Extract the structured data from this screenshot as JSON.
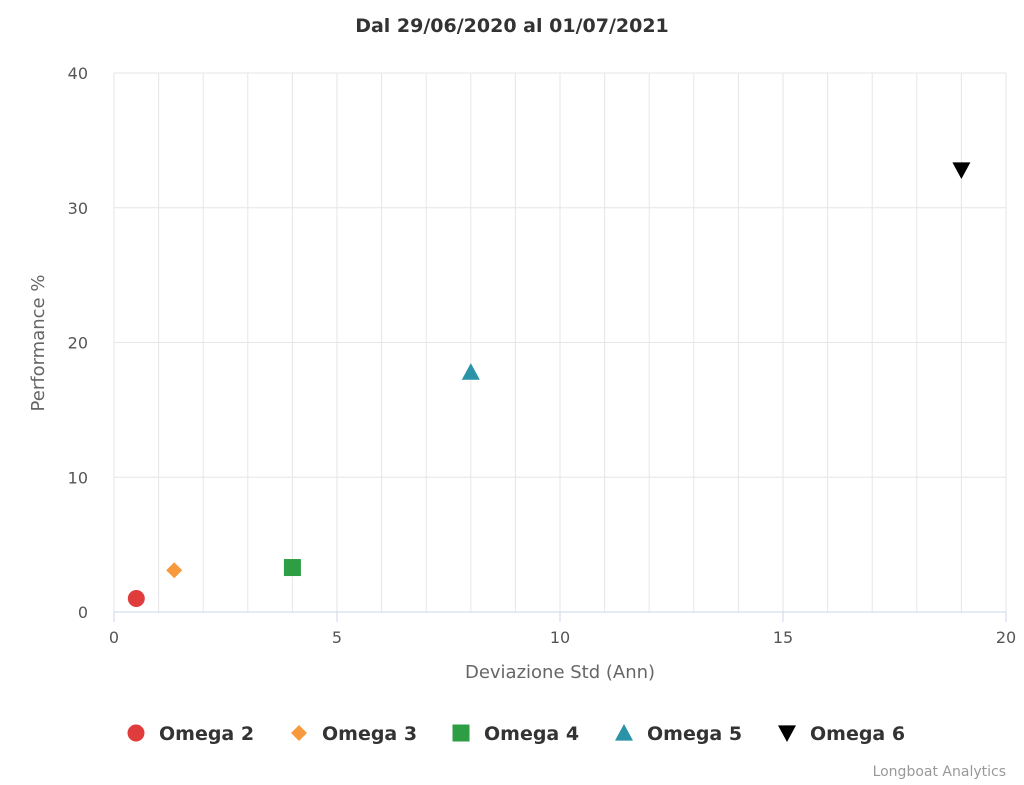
{
  "chart_data": {
    "type": "scatter",
    "title": "Dal 29/06/2020 al 01/07/2021",
    "xlabel": "Deviazione Std (Ann)",
    "ylabel": "Performance %",
    "xlim": [
      0,
      20
    ],
    "ylim": [
      0,
      40
    ],
    "x_ticks": [
      0,
      5,
      10,
      15,
      20
    ],
    "y_ticks": [
      0,
      10,
      20,
      30,
      40
    ],
    "grid": true,
    "legend_position": "bottom-center",
    "series": [
      {
        "name": "Omega 2",
        "marker": "circle",
        "color": "#e03c3c",
        "points": [
          {
            "x": 0.5,
            "y": 1.0
          }
        ]
      },
      {
        "name": "Omega 3",
        "marker": "diamond",
        "color": "#f79a3e",
        "points": [
          {
            "x": 1.35,
            "y": 3.1
          }
        ]
      },
      {
        "name": "Omega 4",
        "marker": "square",
        "color": "#2e9e44",
        "points": [
          {
            "x": 4.0,
            "y": 3.3
          }
        ]
      },
      {
        "name": "Omega 5",
        "marker": "triangle",
        "color": "#2a93a8",
        "points": [
          {
            "x": 8.0,
            "y": 17.8
          }
        ]
      },
      {
        "name": "Omega 6",
        "marker": "triangle-down",
        "color": "#000000",
        "points": [
          {
            "x": 19.0,
            "y": 32.8
          }
        ]
      }
    ]
  },
  "credits": "Longboat Analytics"
}
